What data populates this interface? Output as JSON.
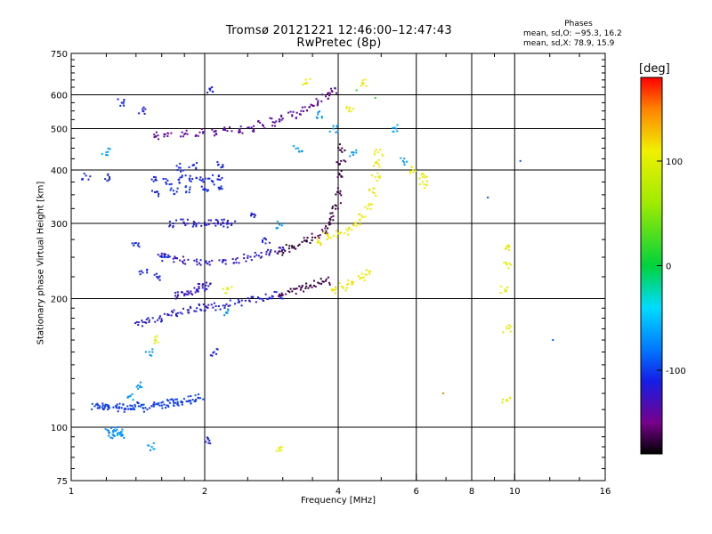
{
  "header": {
    "title_line1": "Tromsø 20121221 12:46:00–12:47:43",
    "title_line2": "RwPretec (8p)"
  },
  "phase_box": {
    "heading": "Phases",
    "line_o": "mean, sd,O: −95.3, 16.2",
    "line_x": "mean, sd,X:  78.9, 15.9"
  },
  "chart_data": {
    "type": "scatter",
    "xlabel": "Frequency [MHz]",
    "ylabel": "Stationary phase Virtual Height [km]",
    "x_scale": "log",
    "y_scale": "log",
    "xlim": [
      1,
      16
    ],
    "ylim": [
      75,
      750
    ],
    "x_ticks": [
      1,
      2,
      4,
      6,
      8,
      10,
      16
    ],
    "x_minor_ticks": [
      1.2,
      1.4,
      1.6,
      1.8,
      2.5,
      3,
      3.5,
      5,
      7,
      9,
      12,
      14
    ],
    "y_ticks": [
      75,
      100,
      200,
      300,
      400,
      500,
      600,
      750
    ],
    "y_minor_ticks": [
      80,
      85,
      90,
      95,
      110,
      120,
      130,
      140,
      150,
      160,
      170,
      180,
      190,
      225,
      250,
      275,
      325,
      350,
      375,
      425,
      450,
      475,
      525,
      550,
      575,
      625,
      650,
      675,
      700,
      725
    ],
    "grid": true,
    "colorbar": {
      "label": "[deg]",
      "min": -180,
      "max": 180,
      "ticks": [
        100,
        0,
        -100
      ]
    },
    "series": [
      {
        "points": [
          [
            1.13,
            112
          ],
          [
            1.16,
            112
          ],
          [
            1.19,
            111
          ],
          [
            1.22,
            111
          ],
          [
            1.26,
            112
          ],
          [
            1.3,
            111
          ],
          [
            1.34,
            112
          ],
          [
            1.38,
            111
          ],
          [
            1.42,
            112
          ],
          [
            1.47,
            111
          ],
          [
            1.52,
            112
          ],
          [
            1.57,
            113
          ],
          [
            1.62,
            113
          ],
          [
            1.67,
            114
          ],
          [
            1.72,
            114
          ],
          [
            1.77,
            115
          ],
          [
            1.82,
            115
          ],
          [
            1.88,
            116
          ],
          [
            1.94,
            117
          ]
        ],
        "phase": -100
      },
      {
        "points": [
          [
            1.22,
            97
          ],
          [
            1.24,
            96
          ],
          [
            1.26,
            98
          ],
          [
            1.28,
            97
          ],
          [
            1.3,
            96
          ]
        ],
        "phase": -70
      },
      {
        "points": [
          [
            1.42,
            176
          ],
          [
            1.5,
            178
          ],
          [
            1.58,
            180
          ],
          [
            1.66,
            183
          ],
          [
            1.74,
            185
          ],
          [
            1.83,
            188
          ],
          [
            1.92,
            190
          ],
          [
            2.02,
            191
          ],
          [
            2.12,
            192
          ],
          [
            2.24,
            194
          ],
          [
            2.38,
            196
          ],
          [
            2.52,
            198
          ],
          [
            2.66,
            200
          ],
          [
            2.8,
            201
          ],
          [
            2.94,
            203
          ]
        ],
        "phase": -115
      },
      {
        "points": [
          [
            1.74,
            203
          ],
          [
            1.8,
            205
          ],
          [
            1.86,
            208
          ],
          [
            1.92,
            210
          ],
          [
            1.98,
            212
          ],
          [
            2.04,
            214
          ]
        ],
        "phase": -120
      },
      {
        "points": [
          [
            3.0,
            204
          ],
          [
            3.15,
            208
          ],
          [
            3.3,
            212
          ],
          [
            3.45,
            214
          ],
          [
            3.6,
            218
          ],
          [
            3.75,
            220
          ]
        ],
        "phase": -165
      },
      {
        "points": [
          [
            3.9,
            210
          ],
          [
            4.1,
            213
          ],
          [
            4.3,
            218
          ],
          [
            4.5,
            224
          ],
          [
            4.7,
            232
          ]
        ],
        "phase": 110
      },
      {
        "points": [
          [
            1.6,
            252
          ],
          [
            1.7,
            248
          ],
          [
            1.8,
            246
          ],
          [
            1.92,
            244
          ],
          [
            2.05,
            244
          ],
          [
            2.2,
            245
          ],
          [
            2.35,
            247
          ],
          [
            2.5,
            249
          ],
          [
            2.65,
            252
          ],
          [
            2.8,
            255
          ],
          [
            2.95,
            258
          ]
        ],
        "phase": -120
      },
      {
        "points": [
          [
            2.95,
            258
          ],
          [
            3.1,
            262
          ],
          [
            3.25,
            266
          ],
          [
            3.4,
            272
          ],
          [
            3.55,
            278
          ],
          [
            3.7,
            287
          ],
          [
            3.82,
            298
          ],
          [
            3.9,
            312
          ],
          [
            3.96,
            330
          ],
          [
            4.0,
            355
          ],
          [
            4.03,
            390
          ],
          [
            4.06,
            420
          ],
          [
            4.08,
            450
          ]
        ],
        "phase": -165
      },
      {
        "points": [
          [
            3.6,
            272
          ],
          [
            3.8,
            280
          ],
          [
            4.0,
            284
          ],
          [
            4.2,
            288
          ],
          [
            4.4,
            296
          ],
          [
            4.55,
            310
          ],
          [
            4.68,
            330
          ],
          [
            4.78,
            355
          ],
          [
            4.85,
            385
          ],
          [
            4.9,
            415
          ],
          [
            4.93,
            440
          ]
        ],
        "phase": 110
      },
      {
        "points": [
          [
            1.7,
            300
          ],
          [
            1.8,
            300
          ],
          [
            1.9,
            301
          ],
          [
            2.0,
            300
          ],
          [
            2.1,
            300
          ],
          [
            2.2,
            300
          ],
          [
            2.3,
            300
          ]
        ],
        "phase": -115
      },
      {
        "points": [
          [
            1.55,
            380
          ],
          [
            1.65,
            378
          ],
          [
            1.75,
            380
          ],
          [
            1.85,
            382
          ],
          [
            1.95,
            380
          ],
          [
            2.05,
            382
          ],
          [
            2.15,
            380
          ]
        ],
        "phase": -110
      },
      {
        "points": [
          [
            1.55,
            355
          ],
          [
            1.7,
            358
          ],
          [
            1.85,
            360
          ],
          [
            2.0,
            362
          ],
          [
            2.15,
            364
          ]
        ],
        "phase": -105
      },
      {
        "points": [
          [
            1.55,
            480
          ],
          [
            1.65,
            480
          ],
          [
            1.8,
            485
          ],
          [
            1.95,
            490
          ],
          [
            2.1,
            492
          ],
          [
            2.25,
            494
          ],
          [
            2.4,
            497
          ],
          [
            2.55,
            503
          ],
          [
            2.7,
            510
          ],
          [
            2.85,
            518
          ],
          [
            3.0,
            528
          ],
          [
            3.15,
            538
          ],
          [
            3.3,
            550
          ],
          [
            3.45,
            562
          ],
          [
            3.6,
            575
          ],
          [
            3.75,
            595
          ],
          [
            3.88,
            610
          ]
        ],
        "phase": -140
      },
      {
        "points": [
          [
            1.3,
            575
          ],
          [
            1.45,
            550
          ],
          [
            1.08,
            388
          ],
          [
            1.22,
            385
          ],
          [
            1.4,
            270
          ],
          [
            1.45,
            230
          ],
          [
            1.56,
            225
          ],
          [
            1.62,
            250
          ],
          [
            1.75,
            405
          ],
          [
            2.05,
            620
          ],
          [
            2.1,
            150
          ],
          [
            2.05,
            93
          ],
          [
            1.88,
            410
          ],
          [
            2.55,
            315
          ],
          [
            2.75,
            275
          ],
          [
            2.15,
            412
          ]
        ],
        "phase": -110
      },
      {
        "points": [
          [
            1.5,
            150
          ],
          [
            1.43,
            125
          ],
          [
            1.35,
            118
          ],
          [
            1.2,
            440
          ],
          [
            1.52,
            90
          ],
          [
            2.25,
            185
          ],
          [
            2.95,
            298
          ],
          [
            3.25,
            450
          ],
          [
            3.6,
            540
          ],
          [
            3.9,
            500
          ],
          [
            4.3,
            440
          ],
          [
            5.4,
            500
          ],
          [
            5.6,
            420
          ]
        ],
        "phase": -65
      },
      {
        "points": [
          [
            1.55,
            160
          ],
          [
            2.25,
            210
          ],
          [
            2.95,
            88
          ],
          [
            3.4,
            640
          ],
          [
            4.25,
            560
          ],
          [
            4.55,
            640
          ],
          [
            5.9,
            400
          ],
          [
            6.2,
            385
          ],
          [
            6.25,
            370
          ],
          [
            9.6,
            265
          ],
          [
            9.6,
            240
          ],
          [
            9.5,
            210
          ],
          [
            9.6,
            170
          ],
          [
            9.6,
            115
          ]
        ],
        "phase": 105
      },
      {
        "points": [
          [
            4.4,
            615
          ],
          [
            4.85,
            590
          ]
        ],
        "phase": 20
      },
      {
        "points": [
          [
            6.9,
            120
          ]
        ],
        "phase": 150
      },
      {
        "points": [
          [
            10.3,
            420
          ],
          [
            8.7,
            345
          ],
          [
            12.2,
            160
          ]
        ],
        "phase": -90
      }
    ]
  }
}
